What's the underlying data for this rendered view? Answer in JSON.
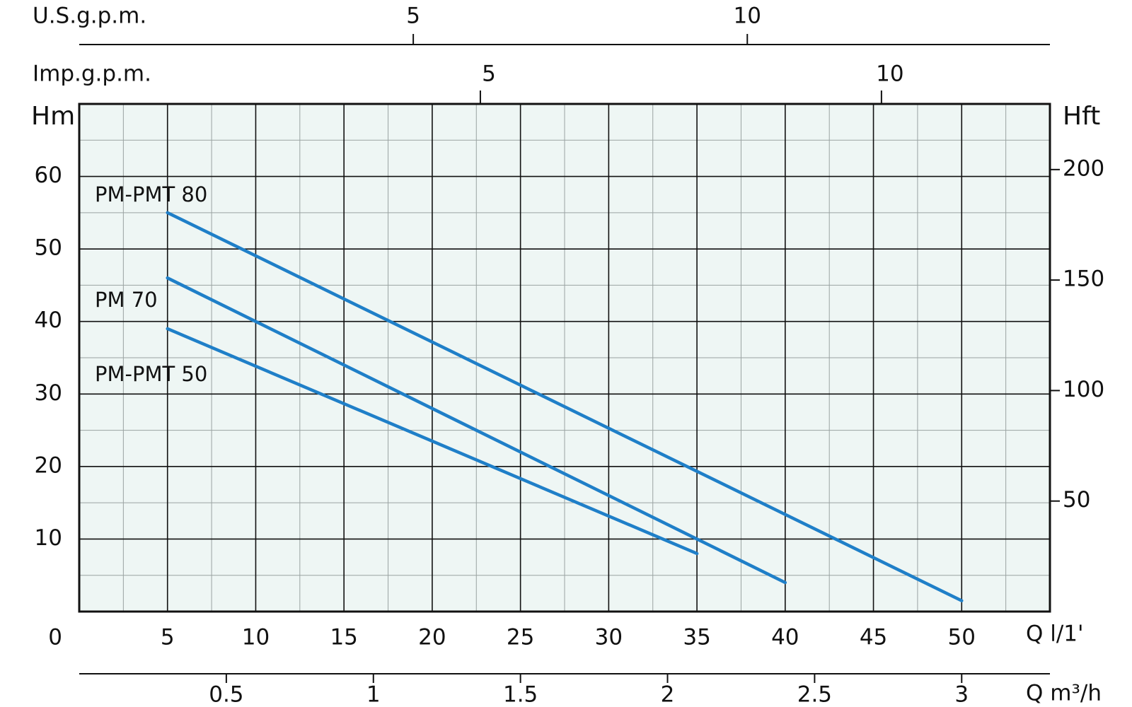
{
  "chart_data": {
    "type": "line",
    "xlabel": "Q l/1'",
    "ylabel": "Hm",
    "y2label": "Hft",
    "x2label": "Imp.g.p.m.",
    "x3label": "U.S.g.p.m.",
    "x4label": "Q m³/h",
    "xlim": [
      0,
      55
    ],
    "xticks": [
      0,
      5,
      10,
      15,
      20,
      25,
      30,
      35,
      40,
      45,
      50
    ],
    "xminor": [
      2.5,
      7.5,
      12.5,
      17.5,
      22.5,
      27.5,
      32.5,
      37.5,
      42.5,
      47.5,
      52.5
    ],
    "ylim": [
      0,
      70
    ],
    "yticks": [
      10,
      20,
      30,
      40,
      50,
      60
    ],
    "yminor": [
      5,
      15,
      25,
      35,
      45,
      55,
      65
    ],
    "y2lim": [
      0,
      229.7
    ],
    "y2ticks": [
      50,
      100,
      150,
      200
    ],
    "x2lim": [
      0,
      12.1
    ],
    "x2ticks": [
      5,
      10
    ],
    "x3lim": [
      0,
      14.53
    ],
    "x3ticks": [
      5,
      10
    ],
    "x4lim": [
      0,
      3.3
    ],
    "x4ticks": [
      0.5,
      1,
      1.5,
      2,
      2.5,
      3
    ],
    "grid": true,
    "series": [
      {
        "name": "PM-PMT 80",
        "color": "#1f7fc8",
        "x": [
          5,
          50
        ],
        "values": [
          55,
          1.5
        ]
      },
      {
        "name": "PM 70",
        "color": "#1f7fc8",
        "x": [
          5,
          40
        ],
        "values": [
          46,
          4
        ]
      },
      {
        "name": "PM-PMT 50",
        "color": "#1f7fc8",
        "x": [
          5,
          35
        ],
        "values": [
          39,
          8
        ]
      }
    ]
  }
}
